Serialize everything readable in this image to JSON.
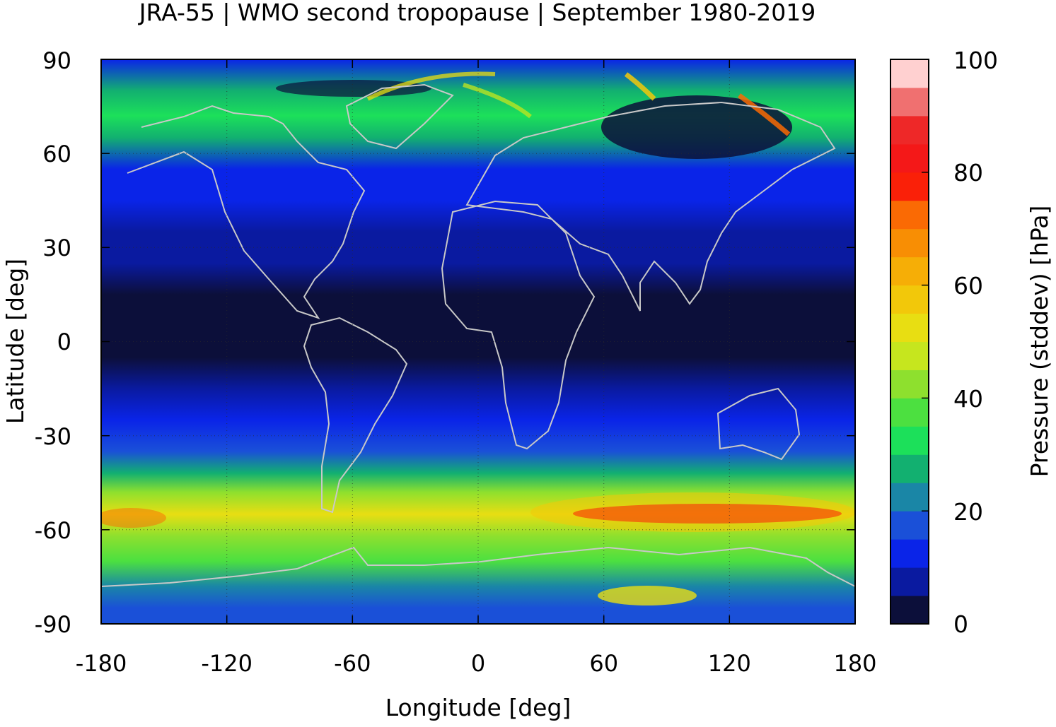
{
  "title": "JRA-55 | WMO second tropopause | September 1980-2019",
  "chart_data": {
    "type": "heatmap",
    "title": "JRA-55 | WMO second tropopause | September 1980-2019",
    "xlabel": "Longitude [deg]",
    "ylabel": "Latitude [deg]",
    "xlim": [
      -180,
      180
    ],
    "ylim": [
      -90,
      90
    ],
    "x_ticks": [
      "-180",
      "-120",
      "-60",
      "0",
      "60",
      "120",
      "180"
    ],
    "y_ticks": [
      "90",
      "60",
      "30",
      "0",
      "-30",
      "-60",
      "-90"
    ],
    "grid": true,
    "coastlines": true,
    "colorbar": {
      "label": "Pressure (stddev) [hPa]",
      "range": [
        0,
        100
      ],
      "ticks": [
        "100",
        "80",
        "60",
        "40",
        "20",
        "0"
      ],
      "levels": [
        0,
        5,
        10,
        15,
        20,
        25,
        30,
        35,
        40,
        45,
        50,
        55,
        60,
        65,
        70,
        75,
        80,
        85,
        90,
        95,
        100
      ],
      "colors": [
        "#0c0f3a",
        "#0a1aa0",
        "#0a24e8",
        "#1a50d8",
        "#1a86a6",
        "#12b070",
        "#1ce05a",
        "#4ce040",
        "#8ee02e",
        "#c6e61e",
        "#e8de12",
        "#f2c80a",
        "#f6ae06",
        "#f88e04",
        "#fa6a04",
        "#fa2008",
        "#f41818",
        "#ee2828",
        "#f07070",
        "#ffd0d0"
      ]
    },
    "zonal_mean_profile": {
      "lat": [
        90,
        80,
        72,
        65,
        55,
        45,
        35,
        25,
        15,
        5,
        -5,
        -15,
        -25,
        -35,
        -42,
        -48,
        -55,
        -62,
        -70,
        -78,
        -85,
        -90
      ],
      "stddev": [
        12,
        28,
        32,
        26,
        14,
        11,
        9,
        5,
        3,
        3,
        3,
        5,
        10,
        15,
        28,
        40,
        52,
        42,
        35,
        24,
        18,
        17
      ]
    }
  }
}
